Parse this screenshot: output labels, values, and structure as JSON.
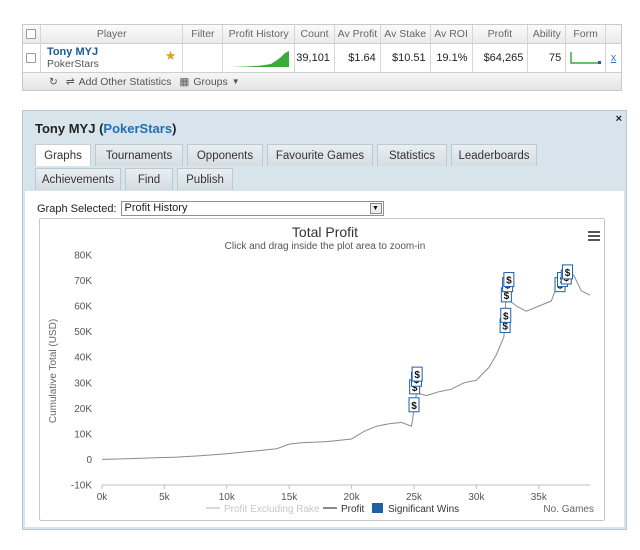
{
  "table": {
    "headers": [
      "Player",
      "Filter",
      "Profit History",
      "Count",
      "Av Profit",
      "Av Stake",
      "Av ROI",
      "Profit",
      "Ability",
      "Form"
    ],
    "row": {
      "player_name": "Tony MYJ",
      "player_site": "PokerStars",
      "count": "39,101",
      "av_profit": "$1.64",
      "av_stake": "$10.51",
      "av_roi": "19.1%",
      "profit": "$64,265",
      "ability": "75",
      "remove": "x"
    },
    "footer": {
      "add_stats": "Add Other Statistics",
      "groups": "Groups"
    }
  },
  "panel": {
    "name": "Tony MYJ",
    "site": "PokerStars",
    "open_paren": "(",
    "close_paren": ")",
    "close": "×",
    "tabs_row1": [
      "Graphs",
      "Tournaments",
      "Opponents",
      "Favourite Games",
      "Statistics",
      "Leaderboards"
    ],
    "tabs_row2": [
      "Achievements",
      "Find",
      "Publish"
    ],
    "active_tab": "Graphs",
    "graph_selected_label": "Graph Selected:",
    "graph_selected_value": "Profit History"
  },
  "colors": {
    "sparkline": "#3bab3b",
    "profit_line": "#8a8a8a",
    "significant_win": "#1f5fa8",
    "brand_blue": "#1f6fb8"
  },
  "chart_data": {
    "type": "line",
    "title": "Total Profit",
    "subtitle": "Click and drag inside the plot area to zoom-in",
    "xlabel": "No. Games",
    "ylabel": "Cumulative Total (USD)",
    "xlim": [
      0,
      39101
    ],
    "ylim": [
      -10000,
      80000
    ],
    "xticks": [
      "0k",
      "5k",
      "10k",
      "15k",
      "20k",
      "25k",
      "30k",
      "35k"
    ],
    "yticks": [
      "-10K",
      "0",
      "10K",
      "20K",
      "30K",
      "40K",
      "50K",
      "60K",
      "70K",
      "80K"
    ],
    "legend": [
      "Profit Excluding Rake",
      "Profit",
      "Significant Wins"
    ],
    "series": [
      {
        "name": "Profit",
        "x": [
          0,
          2000,
          4000,
          6000,
          8000,
          10000,
          12000,
          14000,
          15000,
          16000,
          18000,
          20000,
          21000,
          22000,
          23000,
          24000,
          24800,
          25200,
          26000,
          27000,
          28000,
          29000,
          30000,
          31000,
          31600,
          32200,
          32400,
          32700,
          33200,
          34000,
          35000,
          36000,
          36600,
          37200,
          37800,
          38400,
          39101
        ],
        "y": [
          0,
          300,
          600,
          900,
          1500,
          2200,
          3200,
          4200,
          6000,
          6500,
          7000,
          8000,
          11000,
          13000,
          14000,
          14500,
          13000,
          26000,
          25000,
          26500,
          27500,
          30000,
          31000,
          36000,
          41000,
          48000,
          67000,
          62000,
          60000,
          58000,
          60000,
          62000,
          70000,
          75000,
          72000,
          66000,
          64265
        ]
      },
      {
        "name": "Significant Wins",
        "x": [
          25000,
          25050,
          25200,
          25250,
          32300,
          32350,
          32400,
          32500,
          32600,
          36700,
          36900,
          37200,
          37300
        ],
        "y": [
          21000,
          28000,
          31000,
          33000,
          52000,
          56000,
          64000,
          68000,
          70000,
          68000,
          70000,
          71000,
          73000
        ]
      }
    ]
  }
}
